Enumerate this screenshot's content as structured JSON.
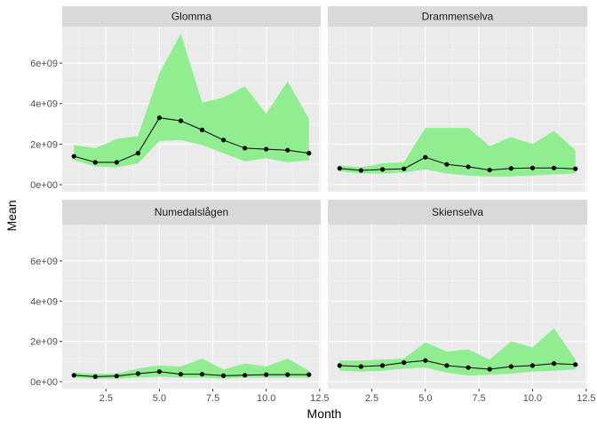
{
  "chart_data": {
    "type": "line",
    "xlabel": "Month",
    "ylabel": "Mean",
    "xlim": [
      0.45,
      12.55
    ],
    "ylim": [
      -350000000.0,
      7800000000.0
    ],
    "x_ticks": [
      2.5,
      5.0,
      7.5,
      10.0,
      12.5
    ],
    "x_tick_labels": [
      "2.5",
      "5.0",
      "7.5",
      "10.0",
      "12.5"
    ],
    "y_ticks": [
      0,
      2000000000.0,
      4000000000.0,
      6000000000.0
    ],
    "y_tick_labels": [
      "0e+00",
      "2e+09",
      "4e+09",
      "6e+09"
    ],
    "grid": true,
    "ribbon_color": "#90ee90",
    "line_color": "#000000",
    "panel_bg": "#ebebeb",
    "strip_bg": "#d9d9d9",
    "x": [
      1,
      2,
      3,
      4,
      5,
      6,
      7,
      8,
      9,
      10,
      11,
      12
    ],
    "panels": [
      {
        "name": "Glomma",
        "mean": [
          1400000000.0,
          1100000000.0,
          1100000000.0,
          1550000000.0,
          3300000000.0,
          3150000000.0,
          2700000000.0,
          2200000000.0,
          1800000000.0,
          1750000000.0,
          1700000000.0,
          1550000000.0
        ],
        "lower": [
          1200000000.0,
          900000000.0,
          850000000.0,
          1050000000.0,
          2150000000.0,
          2200000000.0,
          1950000000.0,
          1550000000.0,
          1150000000.0,
          1300000000.0,
          1100000000.0,
          1200000000.0
        ],
        "upper": [
          1950000000.0,
          1800000000.0,
          2250000000.0,
          2400000000.0,
          5500000000.0,
          7450000000.0,
          4050000000.0,
          4300000000.0,
          4850000000.0,
          3500000000.0,
          5100000000.0,
          3250000000.0
        ]
      },
      {
        "name": "Drammenselva",
        "mean": [
          800000000.0,
          700000000.0,
          750000000.0,
          780000000.0,
          1350000000.0,
          1000000000.0,
          880000000.0,
          720000000.0,
          800000000.0,
          820000000.0,
          820000000.0,
          780000000.0
        ],
        "lower": [
          650000000.0,
          550000000.0,
          550000000.0,
          600000000.0,
          750000000.0,
          550000000.0,
          450000000.0,
          400000000.0,
          400000000.0,
          450000000.0,
          500000000.0,
          550000000.0
        ],
        "upper": [
          950000000.0,
          850000000.0,
          1050000000.0,
          1100000000.0,
          2800000000.0,
          2800000000.0,
          2800000000.0,
          1900000000.0,
          2350000000.0,
          2000000000.0,
          2650000000.0,
          1700000000.0
        ]
      },
      {
        "name": "Numedalslågen",
        "mean": [
          320000000.0,
          250000000.0,
          280000000.0,
          400000000.0,
          500000000.0,
          370000000.0,
          370000000.0,
          300000000.0,
          320000000.0,
          350000000.0,
          350000000.0,
          350000000.0
        ],
        "lower": [
          200000000.0,
          150000000.0,
          150000000.0,
          200000000.0,
          250000000.0,
          200000000.0,
          200000000.0,
          150000000.0,
          200000000.0,
          200000000.0,
          200000000.0,
          200000000.0
        ],
        "upper": [
          450000000.0,
          400000000.0,
          400000000.0,
          650000000.0,
          800000000.0,
          750000000.0,
          1150000000.0,
          600000000.0,
          900000000.0,
          750000000.0,
          1150000000.0,
          550000000.0
        ]
      },
      {
        "name": "Skienselva",
        "mean": [
          800000000.0,
          750000000.0,
          800000000.0,
          950000000.0,
          1050000000.0,
          800000000.0,
          700000000.0,
          620000000.0,
          750000000.0,
          800000000.0,
          900000000.0,
          850000000.0
        ],
        "lower": [
          550000000.0,
          500000000.0,
          550000000.0,
          650000000.0,
          700000000.0,
          450000000.0,
          300000000.0,
          350000000.0,
          400000000.0,
          500000000.0,
          550000000.0,
          600000000.0
        ],
        "upper": [
          1050000000.0,
          1050000000.0,
          1100000000.0,
          1150000000.0,
          1950000000.0,
          1500000000.0,
          1600000000.0,
          1100000000.0,
          2000000000.0,
          1700000000.0,
          2650000000.0,
          1100000000.0
        ]
      }
    ]
  }
}
